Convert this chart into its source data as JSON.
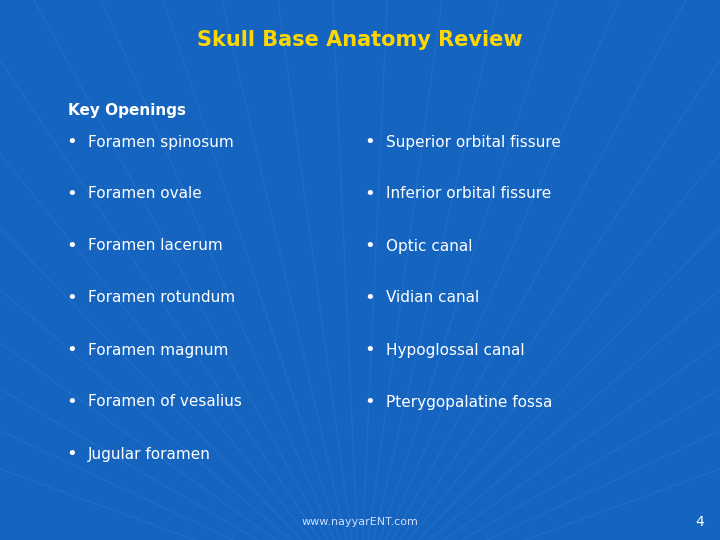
{
  "title": "Skull Base Anatomy Review",
  "title_color": "#FFD700",
  "title_fontsize": 15,
  "title_bold": true,
  "section_header": "Key Openings",
  "section_header_color": "#FFFFFF",
  "section_header_fontsize": 11,
  "section_header_bold": true,
  "bg_color": "#1565C0",
  "left_items": [
    "Foramen spinosum",
    "Foramen ovale",
    "Foramen lacerum",
    "Foramen rotundum",
    "Foramen magnum",
    "Foramen of vesalius",
    "Jugular foramen"
  ],
  "right_items": [
    "Superior orbital fissure",
    "Inferior orbital fissure",
    "Optic canal",
    "Vidian canal",
    "Hypoglossal canal",
    "Pterygopalatine fossa"
  ],
  "item_color": "#FFFFFF",
  "item_fontsize": 11,
  "bullet_color": "#FFFFFF",
  "footer_text": "www.nayyarENT.com",
  "footer_color": "#CCDDFF",
  "footer_fontsize": 8,
  "page_number": "4",
  "page_number_color": "#FFFFFF",
  "page_number_fontsize": 10,
  "ray_color": "#4488DD",
  "ray_alpha": 0.25
}
